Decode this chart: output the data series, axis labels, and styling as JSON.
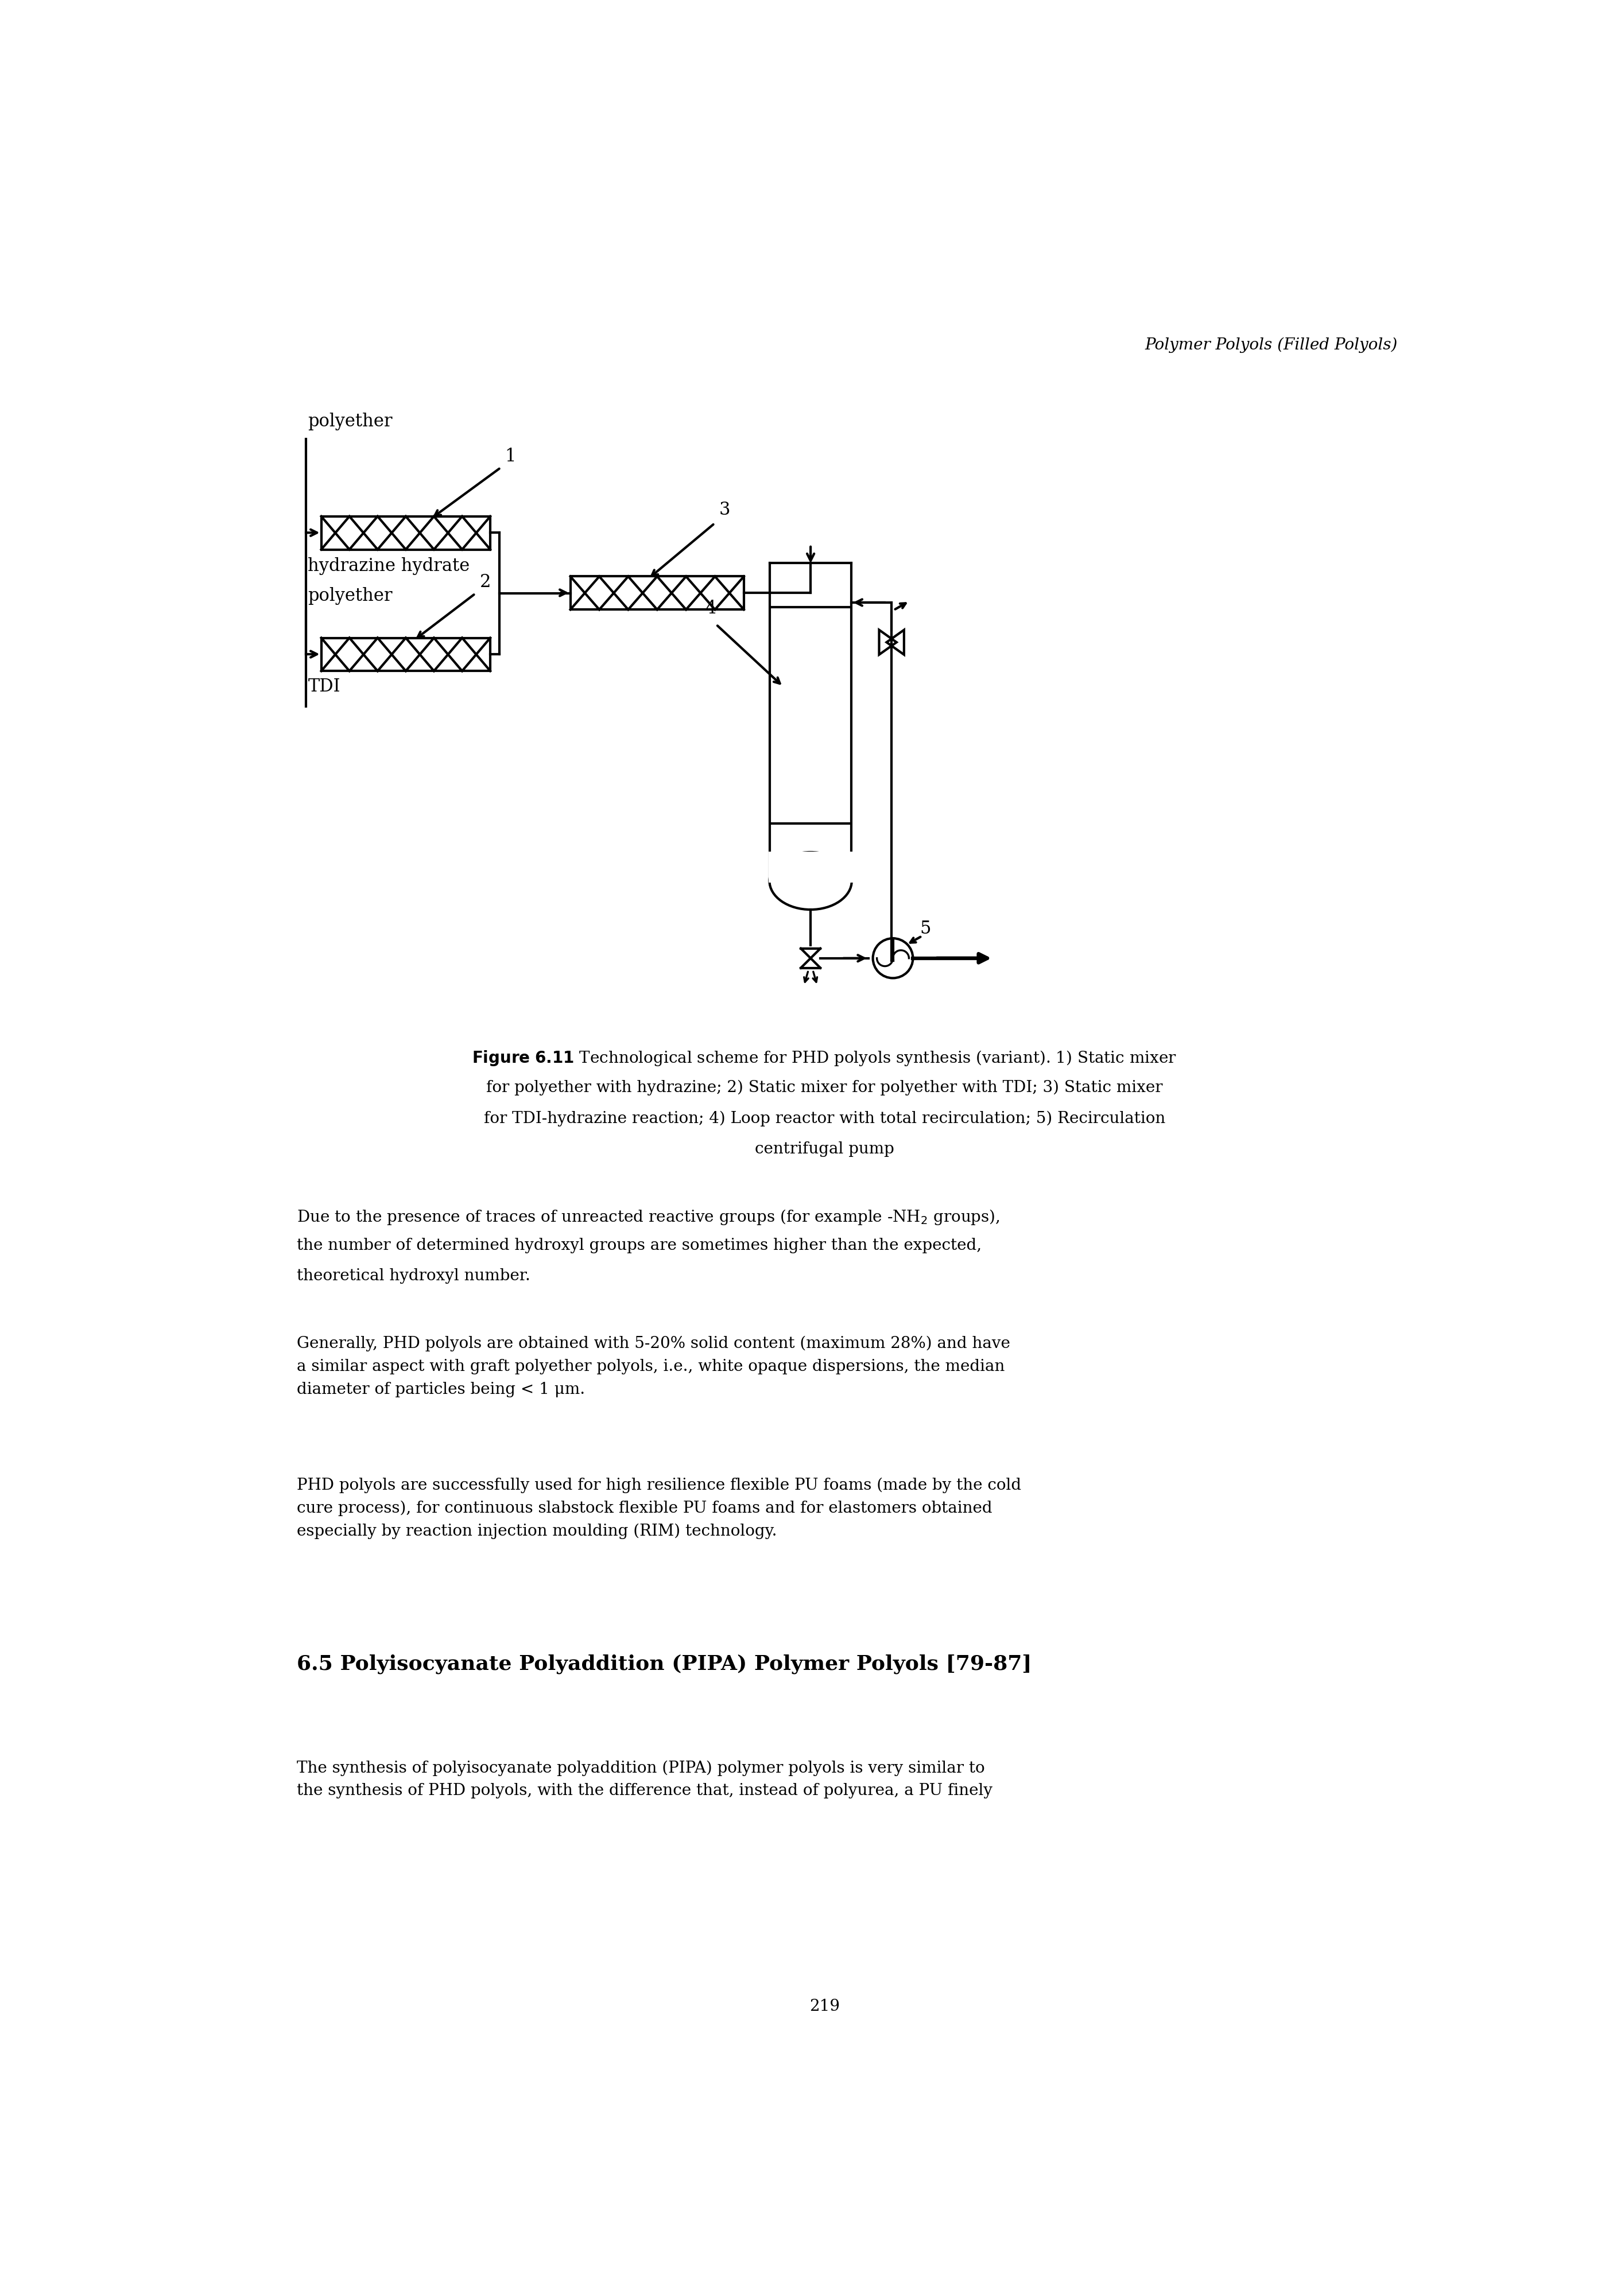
{
  "header_text": "Polymer Polyols (Filled Polyols)",
  "fig_bold": "Figure 6.11",
  "fig_rest": " Technological scheme for PHD polyols synthesis (variant). 1) Static mixer\nfor polyether with hydrazine; 2) Static mixer for polyether with TDI; 3) Static mixer\nfor TDI-hydrazine reaction; 4) Loop reactor with total recirculation; 5) Recirculation\ncentrifugal pump",
  "para1_main": "Due to the presence of traces of unreacted reactive groups (for example -NH",
  "para1_sub": "2",
  "para1_end": " groups),",
  "para1_line2": "the number of determined hydroxyl groups are sometimes higher than the expected,",
  "para1_line3": "theoretical hydroxyl number.",
  "para2": "Generally, PHD polyols are obtained with 5-20% solid content (maximum 28%) and have\na similar aspect with graft polyether polyols, i.e., white opaque dispersions, the median\ndiameter of particles being < 1 μm.",
  "para3": "PHD polyols are successfully used for high resilience flexible PU foams (made by the cold\ncure process), for continuous slabstock flexible PU foams and for elastomers obtained\nespecially by reaction injection moulding (RIM) technology.",
  "section_title": "6.5 Polyisocyanate Polyaddition (PIPA) Polymer Polyols [79-87]",
  "para4": "The synthesis of polyisocyanate polyaddition (PIPA) polymer polyols is very similar to\nthe synthesis of PHD polyols, with the difference that, instead of polyurea, a PU finely",
  "page_number": "219"
}
